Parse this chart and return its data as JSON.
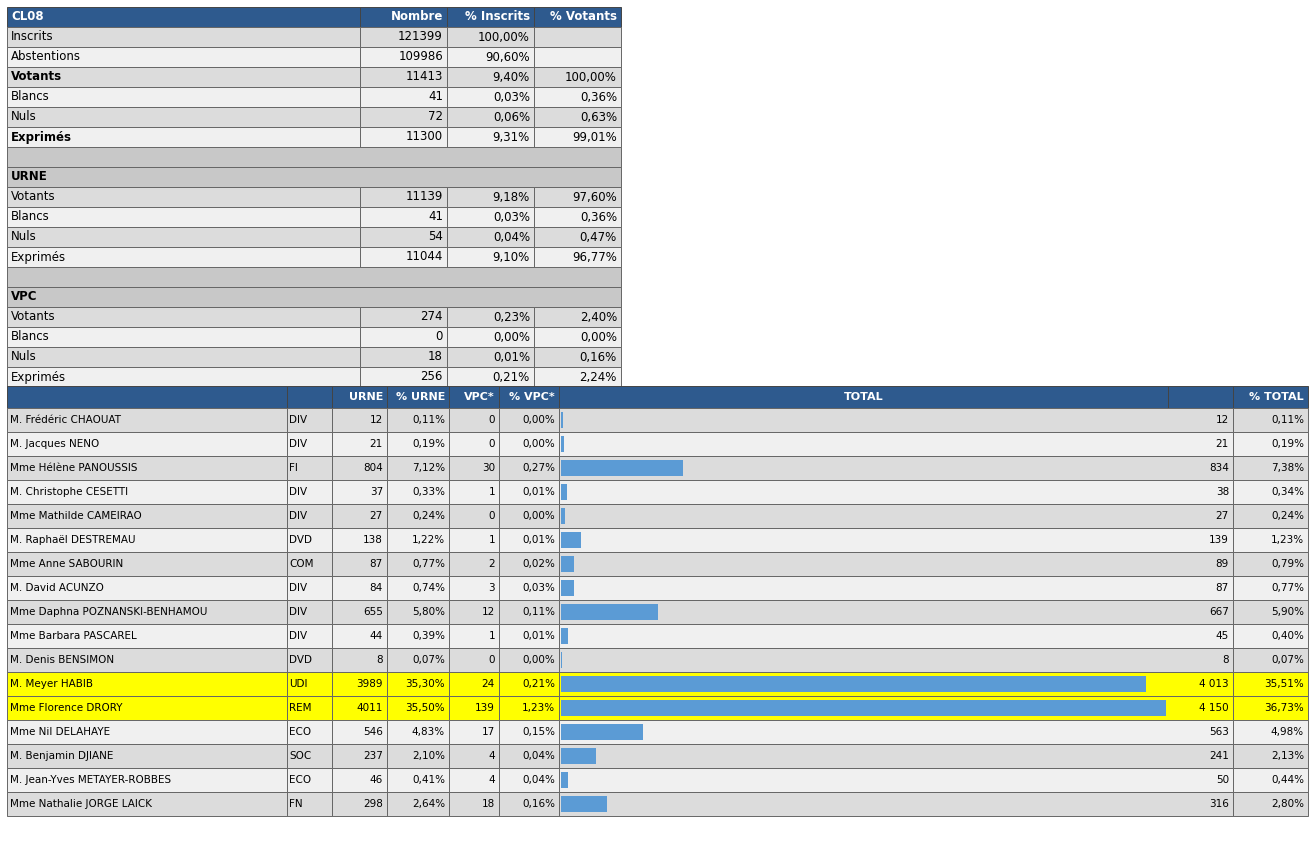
{
  "header_bg": "#2E5A8E",
  "header_text": "#FFFFFF",
  "row_bg_light": "#DCDCDC",
  "row_bg_white": "#F0F0F0",
  "row_bg_section": "#C8C8C8",
  "yellow_bg": "#FFFF00",
  "bar_color": "#5B9BD5",
  "table1": {
    "rows": [
      {
        "label": "Inscrits",
        "section": false,
        "bold": false,
        "nombre": "121399",
        "pct_inscrits": "100,00%",
        "pct_votants": ""
      },
      {
        "label": "Abstentions",
        "section": false,
        "bold": false,
        "nombre": "109986",
        "pct_inscrits": "90,60%",
        "pct_votants": ""
      },
      {
        "label": "Votants",
        "section": false,
        "bold": true,
        "nombre": "11413",
        "pct_inscrits": "9,40%",
        "pct_votants": "100,00%"
      },
      {
        "label": "Blancs",
        "section": false,
        "bold": false,
        "nombre": "41",
        "pct_inscrits": "0,03%",
        "pct_votants": "0,36%"
      },
      {
        "label": "Nuls",
        "section": false,
        "bold": false,
        "nombre": "72",
        "pct_inscrits": "0,06%",
        "pct_votants": "0,63%"
      },
      {
        "label": "Exprimés",
        "section": false,
        "bold": true,
        "nombre": "11300",
        "pct_inscrits": "9,31%",
        "pct_votants": "99,01%"
      },
      {
        "label": "",
        "section": true,
        "spacer": true,
        "bold": false,
        "nombre": "",
        "pct_inscrits": "",
        "pct_votants": ""
      },
      {
        "label": "URNE",
        "section": true,
        "spacer": false,
        "bold": true,
        "nombre": "",
        "pct_inscrits": "",
        "pct_votants": ""
      },
      {
        "label": "Votants",
        "section": false,
        "bold": false,
        "nombre": "11139",
        "pct_inscrits": "9,18%",
        "pct_votants": "97,60%"
      },
      {
        "label": "Blancs",
        "section": false,
        "bold": false,
        "nombre": "41",
        "pct_inscrits": "0,03%",
        "pct_votants": "0,36%"
      },
      {
        "label": "Nuls",
        "section": false,
        "bold": false,
        "nombre": "54",
        "pct_inscrits": "0,04%",
        "pct_votants": "0,47%"
      },
      {
        "label": "Exprimés",
        "section": false,
        "bold": false,
        "nombre": "11044",
        "pct_inscrits": "9,10%",
        "pct_votants": "96,77%"
      },
      {
        "label": "",
        "section": true,
        "spacer": true,
        "bold": false,
        "nombre": "",
        "pct_inscrits": "",
        "pct_votants": ""
      },
      {
        "label": "VPC",
        "section": true,
        "spacer": false,
        "bold": true,
        "nombre": "",
        "pct_inscrits": "",
        "pct_votants": ""
      },
      {
        "label": "Votants",
        "section": false,
        "bold": false,
        "nombre": "274",
        "pct_inscrits": "0,23%",
        "pct_votants": "2,40%"
      },
      {
        "label": "Blancs",
        "section": false,
        "bold": false,
        "nombre": "0",
        "pct_inscrits": "0,00%",
        "pct_votants": "0,00%"
      },
      {
        "label": "Nuls",
        "section": false,
        "bold": false,
        "nombre": "18",
        "pct_inscrits": "0,01%",
        "pct_votants": "0,16%"
      },
      {
        "label": "Exprimés",
        "section": false,
        "bold": false,
        "nombre": "256",
        "pct_inscrits": "0,21%",
        "pct_votants": "2,24%"
      }
    ]
  },
  "table2": {
    "candidates": [
      {
        "name": "M. Frédéric CHAOUAT",
        "party": "DIV",
        "urne": "12",
        "pct_urne": "0,11%",
        "vpc": "0",
        "pct_vpc": "0,00%",
        "total": "12",
        "pct_total": "0,11%",
        "bar_pct": 0.11,
        "yellow": false
      },
      {
        "name": "M. Jacques NENO",
        "party": "DIV",
        "urne": "21",
        "pct_urne": "0,19%",
        "vpc": "0",
        "pct_vpc": "0,00%",
        "total": "21",
        "pct_total": "0,19%",
        "bar_pct": 0.19,
        "yellow": false
      },
      {
        "name": "Mme Hélène PANOUSSIS",
        "party": "FI",
        "urne": "804",
        "pct_urne": "7,12%",
        "vpc": "30",
        "pct_vpc": "0,27%",
        "total": "834",
        "pct_total": "7,38%",
        "bar_pct": 7.38,
        "yellow": false
      },
      {
        "name": "M. Christophe CESETTI",
        "party": "DIV",
        "urne": "37",
        "pct_urne": "0,33%",
        "vpc": "1",
        "pct_vpc": "0,01%",
        "total": "38",
        "pct_total": "0,34%",
        "bar_pct": 0.34,
        "yellow": false
      },
      {
        "name": "Mme Mathilde CAMEIRAO",
        "party": "DIV",
        "urne": "27",
        "pct_urne": "0,24%",
        "vpc": "0",
        "pct_vpc": "0,00%",
        "total": "27",
        "pct_total": "0,24%",
        "bar_pct": 0.24,
        "yellow": false
      },
      {
        "name": "M. Raphaël DESTREMAU",
        "party": "DVD",
        "urne": "138",
        "pct_urne": "1,22%",
        "vpc": "1",
        "pct_vpc": "0,01%",
        "total": "139",
        "pct_total": "1,23%",
        "bar_pct": 1.23,
        "yellow": false
      },
      {
        "name": "Mme Anne SABOURIN",
        "party": "COM",
        "urne": "87",
        "pct_urne": "0,77%",
        "vpc": "2",
        "pct_vpc": "0,02%",
        "total": "89",
        "pct_total": "0,79%",
        "bar_pct": 0.79,
        "yellow": false
      },
      {
        "name": "M. David ACUNZO",
        "party": "DIV",
        "urne": "84",
        "pct_urne": "0,74%",
        "vpc": "3",
        "pct_vpc": "0,03%",
        "total": "87",
        "pct_total": "0,77%",
        "bar_pct": 0.77,
        "yellow": false
      },
      {
        "name": "Mme Daphna POZNANSKI-BENHAMOU",
        "party": "DIV",
        "urne": "655",
        "pct_urne": "5,80%",
        "vpc": "12",
        "pct_vpc": "0,11%",
        "total": "667",
        "pct_total": "5,90%",
        "bar_pct": 5.9,
        "yellow": false
      },
      {
        "name": "Mme Barbara PASCAREL",
        "party": "DIV",
        "urne": "44",
        "pct_urne": "0,39%",
        "vpc": "1",
        "pct_vpc": "0,01%",
        "total": "45",
        "pct_total": "0,40%",
        "bar_pct": 0.4,
        "yellow": false
      },
      {
        "name": "M. Denis BENSIMON",
        "party": "DVD",
        "urne": "8",
        "pct_urne": "0,07%",
        "vpc": "0",
        "pct_vpc": "0,00%",
        "total": "8",
        "pct_total": "0,07%",
        "bar_pct": 0.07,
        "yellow": false
      },
      {
        "name": "M. Meyer HABIB",
        "party": "UDI",
        "urne": "3989",
        "pct_urne": "35,30%",
        "vpc": "24",
        "pct_vpc": "0,21%",
        "total": "4 013",
        "pct_total": "35,51%",
        "bar_pct": 35.51,
        "yellow": true
      },
      {
        "name": "Mme Florence DRORY",
        "party": "REM",
        "urne": "4011",
        "pct_urne": "35,50%",
        "vpc": "139",
        "pct_vpc": "1,23%",
        "total": "4 150",
        "pct_total": "36,73%",
        "bar_pct": 36.73,
        "yellow": true
      },
      {
        "name": "Mme Nil DELAHAYE",
        "party": "ECO",
        "urne": "546",
        "pct_urne": "4,83%",
        "vpc": "17",
        "pct_vpc": "0,15%",
        "total": "563",
        "pct_total": "4,98%",
        "bar_pct": 4.98,
        "yellow": false
      },
      {
        "name": "M. Benjamin DJIANE",
        "party": "SOC",
        "urne": "237",
        "pct_urne": "2,10%",
        "vpc": "4",
        "pct_vpc": "0,04%",
        "total": "241",
        "pct_total": "2,13%",
        "bar_pct": 2.13,
        "yellow": false
      },
      {
        "name": "M. Jean-Yves METAYER-ROBBES",
        "party": "ECO",
        "urne": "46",
        "pct_urne": "0,41%",
        "vpc": "4",
        "pct_vpc": "0,04%",
        "total": "50",
        "pct_total": "0,44%",
        "bar_pct": 0.44,
        "yellow": false
      },
      {
        "name": "Mme Nathalie JORGE LAICK",
        "party": "FN",
        "urne": "298",
        "pct_urne": "2,64%",
        "vpc": "18",
        "pct_vpc": "0,16%",
        "total": "316",
        "pct_total": "2,80%",
        "bar_pct": 2.8,
        "yellow": false
      }
    ]
  }
}
